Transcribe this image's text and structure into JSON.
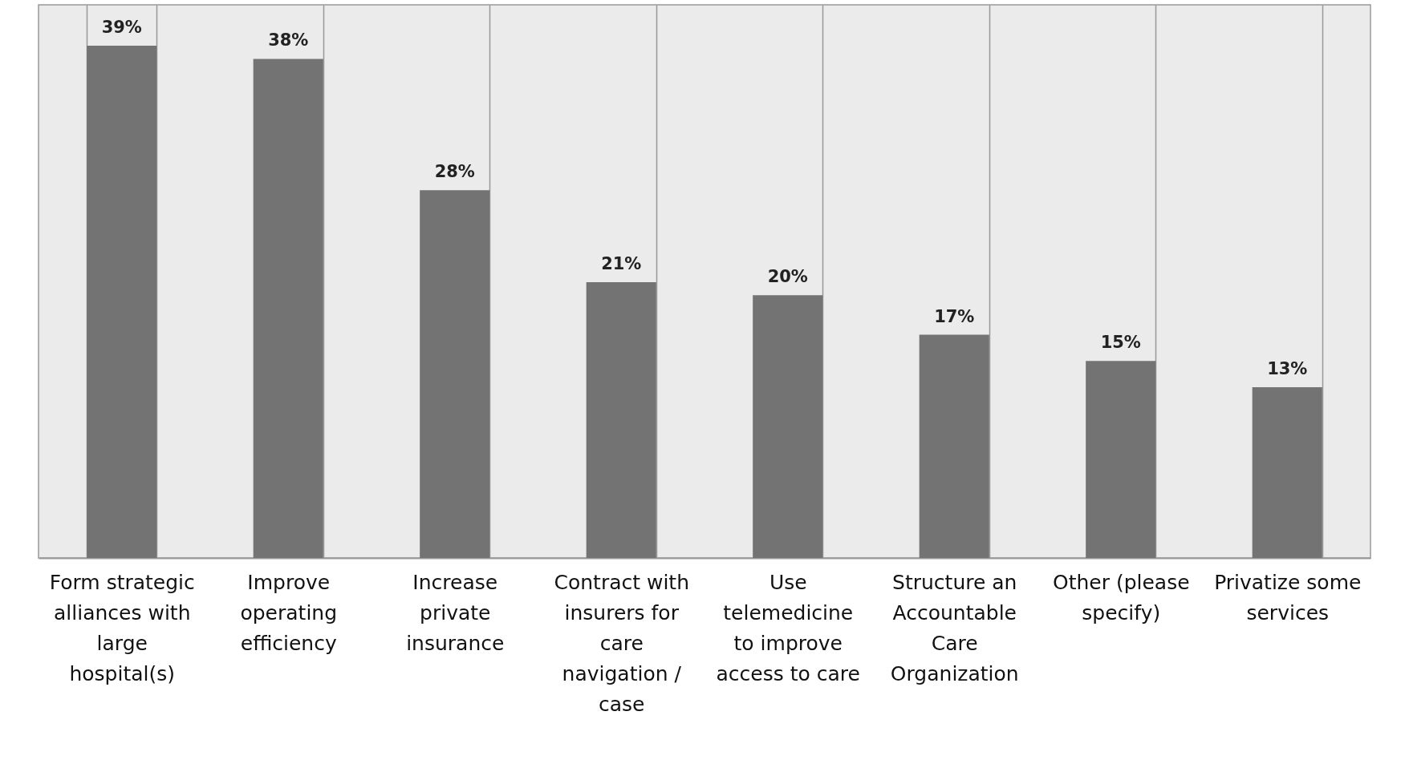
{
  "chart_data": {
    "type": "bar",
    "categories": [
      "Form strategic alliances with large hospital(s)",
      "Improve operating efficiency",
      "Increase private insurance",
      "Contract with insurers for care navigation / case",
      "Use telemedicine to improve access to care",
      "Structure an Accountable Care Organization",
      "Other (please specify)",
      "Privatize some services"
    ],
    "values": [
      39,
      38,
      28,
      21,
      20,
      17,
      15,
      13
    ],
    "value_labels": [
      "39%",
      "38%",
      "28%",
      "21%",
      "20%",
      "17%",
      "15%",
      "13%"
    ],
    "color": "#737373",
    "grid": "x"
  }
}
